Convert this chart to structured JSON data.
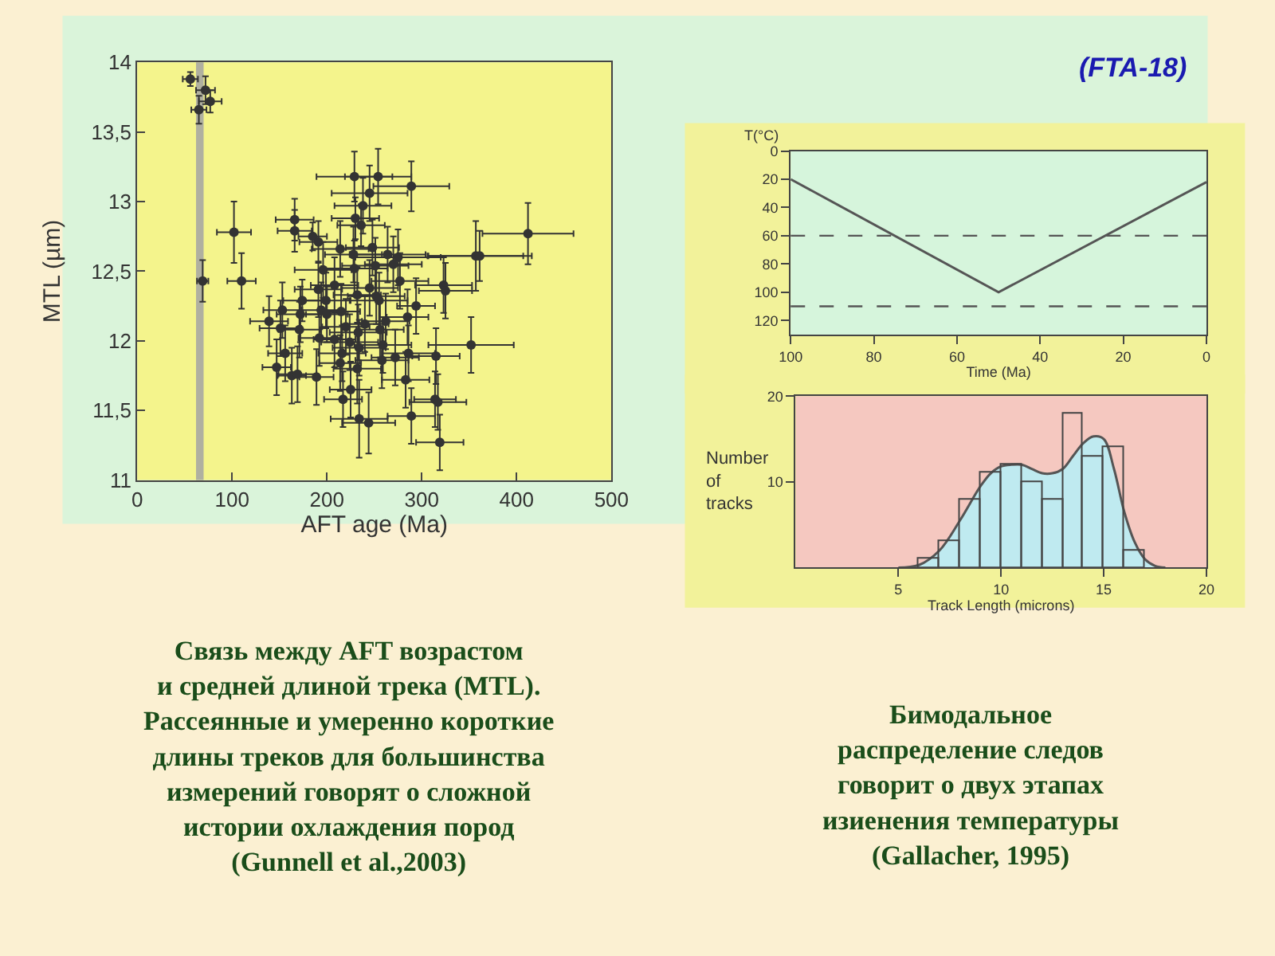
{
  "chart_data": [
    {
      "type": "scatter",
      "xlabel": "AFT age (Ma)",
      "ylabel": "MTL (µm)",
      "xlim": [
        0,
        500
      ],
      "ylim": [
        11,
        14
      ],
      "xticks": [
        0,
        100,
        200,
        300,
        400,
        500
      ],
      "yticks": [
        11,
        {
          "value": 11.5,
          "label": "11,5"
        },
        12,
        {
          "value": 12.5,
          "label": "12,5"
        },
        13,
        {
          "value": 13.5,
          "label": "13,5"
        },
        14
      ],
      "marker": "circle",
      "legend": false,
      "grid": false,
      "x": [
        56,
        72,
        65,
        77,
        69,
        102,
        110,
        139,
        147,
        153,
        156,
        151,
        166,
        166,
        163,
        169,
        171,
        172,
        174,
        185,
        191,
        189,
        192,
        191,
        196,
        194,
        199,
        200,
        208,
        208,
        214,
        215,
        216,
        214,
        217,
        220,
        224,
        225,
        229,
        230,
        228,
        229,
        232,
        233,
        234,
        232,
        234,
        236,
        238,
        240,
        244,
        245,
        245,
        248,
        251,
        252,
        254,
        255,
        256,
        258,
        259,
        262,
        264,
        270,
        272,
        275,
        277,
        283,
        285,
        286,
        289,
        289,
        294,
        315,
        314,
        317,
        319,
        323,
        325,
        352,
        357,
        361,
        412
      ],
      "series": [
        {
          "color": "#333333",
          "values": [
            13.88,
            13.8,
            13.66,
            13.72,
            12.43,
            12.78,
            12.43,
            12.14,
            11.81,
            12.22,
            11.91,
            12.09,
            12.87,
            12.79,
            11.75,
            11.76,
            12.08,
            12.19,
            12.29,
            12.75,
            12.71,
            11.74,
            12.02,
            12.37,
            12.51,
            12.22,
            12.29,
            12.19,
            12.4,
            12.01,
            12.66,
            12.21,
            11.91,
            11.84,
            11.58,
            12.1,
            11.99,
            11.65,
            13.18,
            12.88,
            12.62,
            12.52,
            12.33,
            12.06,
            11.95,
            11.8,
            11.44,
            12.83,
            12.97,
            12.12,
            11.41,
            13.06,
            12.38,
            12.67,
            12.54,
            12.32,
            13.18,
            12.29,
            12.08,
            11.86,
            11.97,
            12.14,
            12.62,
            12.55,
            11.88,
            12.6,
            12.43,
            11.72,
            12.17,
            11.91,
            13.11,
            11.46,
            12.25,
            11.89,
            11.58,
            11.56,
            11.27,
            12.4,
            12.36,
            11.97,
            12.61,
            12.61,
            12.77
          ],
          "xerrors": [
            8,
            10,
            8,
            12,
            6,
            18,
            15,
            20,
            15,
            20,
            18,
            22,
            20,
            18,
            15,
            20,
            22,
            25,
            20,
            15,
            20,
            18,
            22,
            25,
            30,
            20,
            25,
            22,
            25,
            22,
            30,
            20,
            25,
            22,
            20,
            25,
            30,
            22,
            40,
            25,
            30,
            35,
            25,
            30,
            28,
            25,
            30,
            25,
            30,
            25,
            28,
            40,
            30,
            28,
            35,
            30,
            35,
            30,
            25,
            28,
            30,
            25,
            40,
            30,
            25,
            45,
            30,
            25,
            22,
            28,
            40,
            25,
            20,
            25,
            22,
            30,
            25,
            30,
            28,
            45,
            50,
            55,
            48
          ],
          "errors": [
            0.05,
            0.1,
            0.1,
            0.08,
            0.15,
            0.22,
            0.2,
            0.18,
            0.2,
            0.2,
            0.2,
            0.2,
            0.15,
            0.15,
            0.2,
            0.2,
            0.2,
            0.2,
            0.15,
            0.1,
            0.15,
            0.2,
            0.2,
            0.2,
            0.2,
            0.2,
            0.2,
            0.2,
            0.2,
            0.2,
            0.2,
            0.2,
            0.2,
            0.2,
            0.2,
            0.2,
            0.2,
            0.2,
            0.18,
            0.15,
            0.2,
            0.2,
            0.2,
            0.2,
            0.2,
            0.25,
            0.28,
            0.15,
            0.2,
            0.2,
            0.22,
            0.2,
            0.2,
            0.2,
            0.2,
            0.2,
            0.2,
            0.2,
            0.2,
            0.2,
            0.2,
            0.2,
            0.2,
            0.2,
            0.2,
            0.2,
            0.2,
            0.2,
            0.2,
            0.2,
            0.18,
            0.2,
            0.2,
            0.2,
            0.2,
            0.2,
            0.2,
            0.2,
            0.2,
            0.2,
            0.25,
            0.18,
            0.22
          ]
        }
      ],
      "bands": [
        {
          "axis": "x",
          "from": 62,
          "to": 70,
          "color": "#b0b0a0"
        }
      ],
      "annotations": [
        "Связь между AFT возрастом\nи средней длиной трека (MTL).\nРассеянные и умеренно короткие\nдлины треков для большинства\nизмерений говорят о сложной\nистории охлаждения пород\n(Gunnell et al.,2003)"
      ]
    },
    {
      "type": "line",
      "xlabel": "Time (Ma)",
      "ylabel": "T(°C)",
      "xlim": [
        100,
        0
      ],
      "ylim": [
        130,
        0
      ],
      "xticks": [
        100,
        80,
        60,
        40,
        20,
        0
      ],
      "yticks": [
        0,
        20,
        40,
        60,
        80,
        100,
        120
      ],
      "legend": false,
      "grid": false,
      "marker": "none",
      "x": [
        100,
        50,
        0
      ],
      "series": [
        {
          "color": "#555555",
          "values": [
            20,
            100,
            22
          ]
        }
      ],
      "ref_lines": [
        {
          "axis": "y",
          "value": 60,
          "color": "#555555",
          "line_style": "dashed"
        },
        {
          "axis": "y",
          "value": 110,
          "color": "#555555",
          "line_style": "dashed"
        }
      ],
      "annotations": [
        "(FTA-18)"
      ]
    },
    {
      "type": "histogram",
      "xlabel": "Track Length (microns)",
      "ylabel": "Number\nof\ntracks",
      "xlim": [
        0,
        20
      ],
      "ylim": [
        0,
        20
      ],
      "xticks": [
        5,
        10,
        15,
        20
      ],
      "yticks": [
        10,
        20
      ],
      "legend": false,
      "grid": false,
      "series": [
        {
          "type": "histogram",
          "color": "#444444",
          "bins": [
            6,
            7,
            8,
            9,
            10,
            11,
            12,
            13,
            14,
            15,
            16,
            17
          ],
          "values": [
            1,
            3,
            8,
            11,
            12,
            10,
            8,
            18,
            13,
            14,
            2
          ]
        },
        {
          "type": "area",
          "color": "#bfeaf0",
          "x": [
            5,
            6,
            7,
            8,
            9,
            9.5,
            10,
            10.5,
            11,
            11.5,
            12,
            12.5,
            13,
            13.5,
            14,
            14.5,
            15,
            15.5,
            16,
            16.5,
            17,
            17.5,
            18
          ],
          "values": [
            0,
            0.3,
            2,
            5.5,
            9.5,
            11,
            11.8,
            12,
            12,
            11.5,
            11,
            11,
            11.5,
            13,
            14.5,
            15.3,
            15,
            11.5,
            6.5,
            3,
            1,
            0.2,
            0
          ]
        }
      ],
      "annotations": [
        "Бимодальное\nраспределение следов\nговорит о двух этапах\nизиенения температуры\n(Gallacher, 1995)"
      ]
    }
  ]
}
